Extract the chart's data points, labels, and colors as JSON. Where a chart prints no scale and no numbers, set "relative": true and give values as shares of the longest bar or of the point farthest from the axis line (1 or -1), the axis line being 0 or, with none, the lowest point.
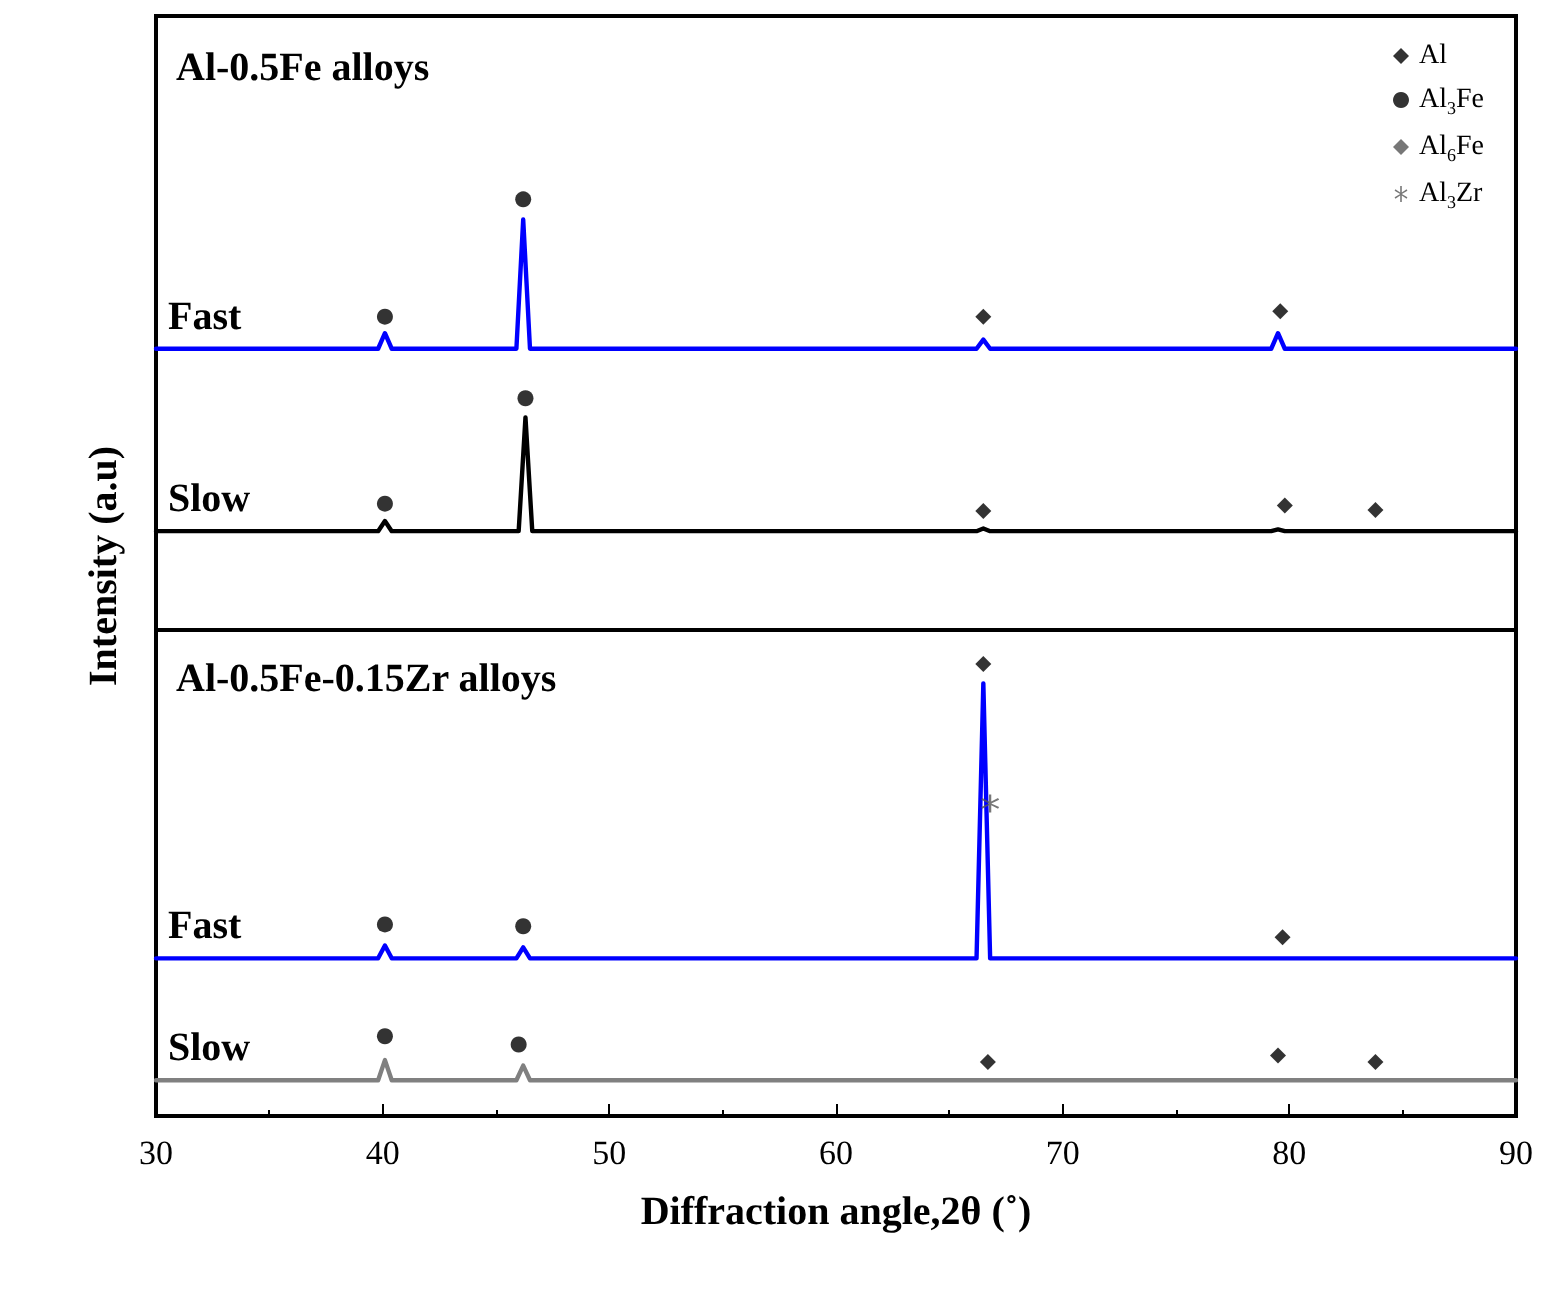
{
  "chart_data": {
    "type": "line",
    "relative": true,
    "xlabel": "Diffraction angle,2θ (˚)",
    "ylabel": "Intensity (a.u)",
    "xlim": [
      30,
      90
    ],
    "xticks": [
      30,
      40,
      50,
      60,
      70,
      80,
      90
    ],
    "grid": false,
    "legend": "top right",
    "marker": "none",
    "line_style": "solid",
    "annotations": [
      "Al-0.5Fe alloys",
      "Al-0.5Fe-0.15Zr alloys"
    ],
    "ref_lines": [
      {
        "axis": "y",
        "value": 0.533,
        "color": "#000000"
      }
    ],
    "series": [
      {
        "name": "Fast",
        "color": "#0000ff",
        "x": [
          30,
          39.8,
          40.1,
          40.4,
          45.9,
          46.2,
          46.5,
          66.2,
          66.5,
          66.8,
          79.2,
          79.5,
          79.8,
          90
        ],
        "values": [
          0.837,
          0.837,
          0.854,
          0.837,
          0.837,
          0.978,
          0.837,
          0.837,
          0.847,
          0.837,
          0.837,
          0.854,
          0.837,
          0.837
        ]
      },
      {
        "name": "Slow",
        "color": "#000000",
        "x": [
          30,
          39.8,
          40.1,
          40.4,
          46.0,
          46.3,
          46.6,
          66.2,
          66.5,
          66.8,
          79.2,
          79.5,
          79.8,
          90
        ],
        "values": [
          0.638,
          0.638,
          0.649,
          0.638,
          0.638,
          0.762,
          0.638,
          0.638,
          0.641,
          0.638,
          0.638,
          0.64,
          0.638,
          0.638
        ]
      },
      {
        "name": "Fast",
        "color": "#0000ff",
        "x": [
          30,
          39.8,
          40.1,
          40.4,
          45.9,
          46.2,
          46.5,
          66.2,
          66.5,
          66.8,
          90
        ],
        "values": [
          0.172,
          0.172,
          0.186,
          0.172,
          0.172,
          0.184,
          0.172,
          0.172,
          0.472,
          0.172,
          0.172
        ]
      },
      {
        "name": "Slow",
        "color": "#808080",
        "x": [
          30,
          39.8,
          40.1,
          40.4,
          45.9,
          46.2,
          46.5,
          90
        ],
        "values": [
          0.039,
          0.039,
          0.061,
          0.039,
          0.039,
          0.055,
          0.039,
          0.039
        ]
      },
      {
        "name": "Al",
        "type": "scatter",
        "marker": "diamond",
        "color": "#000000",
        "x": [
          66.5,
          79.6,
          66.5,
          79.8,
          83.8,
          66.5,
          79.7,
          66.7,
          79.5,
          83.8
        ],
        "values": [
          0.872,
          0.878,
          0.66,
          0.666,
          0.661,
          0.493,
          0.195,
          0.059,
          0.066,
          0.059
        ]
      },
      {
        "name": "Al$_{3}$Fe",
        "type": "scatter",
        "marker": "circle",
        "color": "#000000",
        "x": [
          40.1,
          46.2,
          40.1,
          46.3,
          40.1,
          46.2,
          40.1,
          46.0
        ],
        "values": [
          0.872,
          1.0,
          0.668,
          0.783,
          0.209,
          0.207,
          0.087,
          0.078
        ]
      },
      {
        "name": "Al$_{6}$Fe",
        "type": "scatter",
        "marker": "diamond",
        "color": "#555555"
      },
      {
        "name": "Al$_{3}$Zr",
        "type": "scatter",
        "marker": "star",
        "color": "#555555",
        "x": [
          66.8
        ],
        "values": [
          0.341
        ]
      }
    ]
  }
}
